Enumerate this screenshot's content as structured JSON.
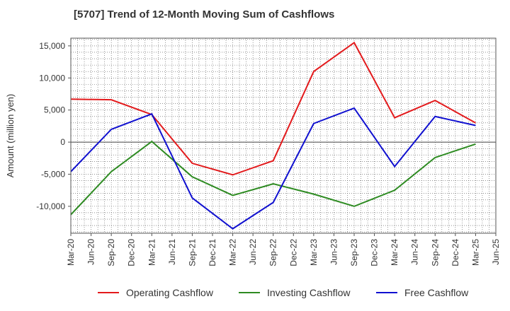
{
  "chart_data": {
    "type": "line",
    "title": "[5707]  Trend of 12-Month Moving Sum of Cashflows",
    "xlabel": "",
    "ylabel": "Amount (million yen)",
    "x_ticks": [
      "Mar-20",
      "Jun-20",
      "Sep-20",
      "Dec-20",
      "Mar-21",
      "Jun-21",
      "Sep-21",
      "Dec-21",
      "Mar-22",
      "Jun-22",
      "Sep-22",
      "Dec-22",
      "Mar-23",
      "Jun-23",
      "Sep-23",
      "Dec-23",
      "Mar-24",
      "Jun-24",
      "Sep-24",
      "Dec-24",
      "Mar-25",
      "Jun-25"
    ],
    "y_ticks": [
      15000,
      10000,
      5000,
      0,
      -5000,
      -10000
    ],
    "y_tick_labels": [
      "15,000",
      "10,000",
      "5,000",
      "0",
      "-5,000",
      "-10,000"
    ],
    "ylim": [
      -14200,
      16200
    ],
    "grid": true,
    "legend_position": "bottom",
    "x": [
      "Mar-20",
      "Sep-20",
      "Mar-21",
      "Sep-21",
      "Mar-22",
      "Sep-22",
      "Mar-23",
      "Sep-23",
      "Mar-24",
      "Sep-24",
      "Mar-25"
    ],
    "series": [
      {
        "name": "Operating Cashflow",
        "color": "#e31a1c",
        "values": [
          6700,
          6600,
          4300,
          -3300,
          -5100,
          -2900,
          11000,
          15500,
          3800,
          6500,
          3000
        ]
      },
      {
        "name": "Investing Cashflow",
        "color": "#2e8b22",
        "values": [
          -11300,
          -4600,
          100,
          -5400,
          -8300,
          -6500,
          -8100,
          -10000,
          -7500,
          -2400,
          -300
        ]
      },
      {
        "name": "Free Cashflow",
        "color": "#1010d0",
        "values": [
          -4600,
          2000,
          4400,
          -8700,
          -13500,
          -9400,
          2900,
          5300,
          -3800,
          4000,
          2600
        ]
      }
    ]
  }
}
